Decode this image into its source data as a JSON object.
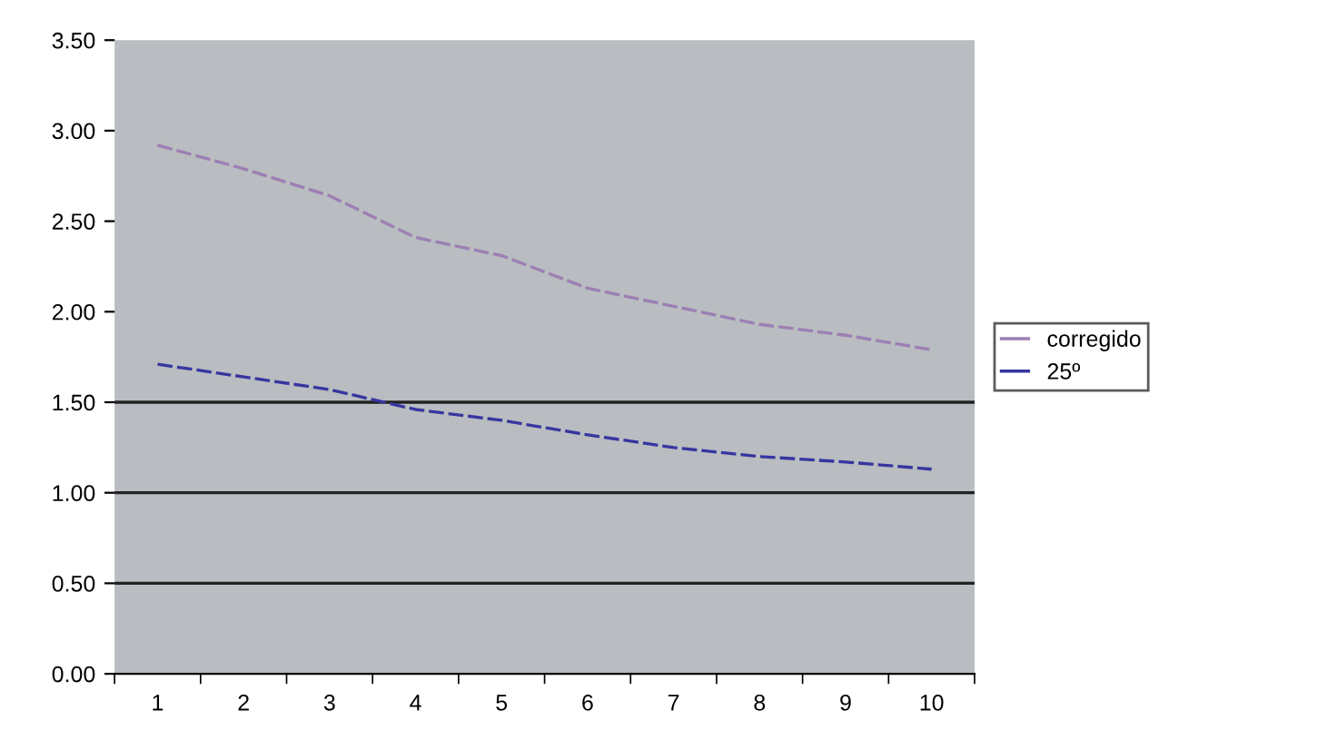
{
  "chart_data": {
    "type": "line",
    "categories": [
      "1",
      "2",
      "3",
      "4",
      "5",
      "6",
      "7",
      "8",
      "9",
      "10"
    ],
    "series": [
      {
        "name": "corregido",
        "color": "#9c7fb4",
        "values": [
          2.92,
          2.79,
          2.64,
          2.41,
          2.31,
          2.13,
          2.03,
          1.93,
          1.87,
          1.79
        ]
      },
      {
        "name": "25º",
        "color": "#3636a0",
        "values": [
          1.71,
          1.64,
          1.57,
          1.46,
          1.4,
          1.32,
          1.25,
          1.2,
          1.17,
          1.13
        ]
      }
    ],
    "ylim": [
      0,
      3.5
    ],
    "yticks": [
      {
        "value": 0,
        "label": "0.00"
      },
      {
        "value": 0.5,
        "label": "0.50"
      },
      {
        "value": 1,
        "label": "1.00"
      },
      {
        "value": 1.5,
        "label": "1.50"
      },
      {
        "value": 2,
        "label": "2.00"
      },
      {
        "value": 2.5,
        "label": "2.50"
      },
      {
        "value": 3,
        "label": "3.00"
      },
      {
        "value": 3.5,
        "label": "3.50"
      }
    ],
    "ref_lines": [
      {
        "axis": "y",
        "value": 0.5,
        "color": "#222222"
      },
      {
        "axis": "y",
        "value": 1,
        "color": "#222222"
      },
      {
        "axis": "y",
        "value": 1.5,
        "color": "#222222"
      }
    ],
    "legend": "right",
    "line_style": "dashed",
    "marker": "none"
  }
}
